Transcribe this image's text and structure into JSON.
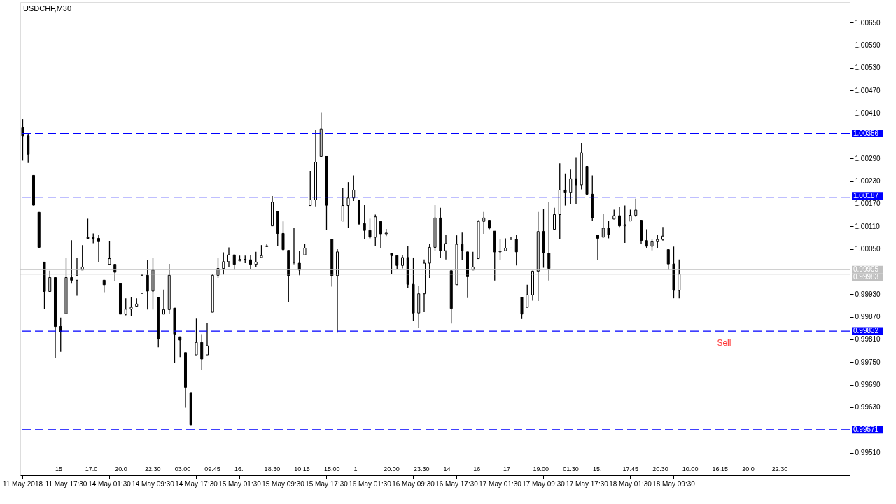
{
  "chart_data": {
    "type": "candlestick",
    "title": "USDCHF,M30",
    "color": "#000000",
    "grid": false,
    "categories": [
      "11 May 2018",
      null,
      null,
      null,
      null,
      null,
      null,
      null,
      "11 May 17:30",
      null,
      null,
      null,
      null,
      null,
      null,
      null,
      "14 May 01:30",
      null,
      null,
      null,
      null,
      null,
      null,
      null,
      "14 May 09:30",
      null,
      null,
      null,
      null,
      null,
      null,
      null,
      "14 May 17:30",
      null,
      null,
      null,
      null,
      null,
      null,
      null,
      "15 May 01:30",
      null,
      null,
      null,
      null,
      null,
      null,
      null,
      "15 May 09:30",
      null,
      null,
      null,
      null,
      null,
      null,
      null,
      "15 May 17:30",
      null,
      null,
      null,
      null,
      null,
      null,
      null,
      "16 May 01:30",
      null,
      null,
      null,
      null,
      null,
      null,
      null,
      "16 May 09:30",
      null,
      null,
      null,
      null,
      null,
      null,
      null,
      "16 May 17:30",
      null,
      null,
      null,
      null,
      null,
      null,
      null,
      "17 May 01:30",
      null,
      null,
      null,
      null,
      null,
      null,
      null,
      "17 May 09:30",
      null,
      null,
      null,
      null,
      null,
      null,
      null,
      "17 May 17:30",
      null,
      null,
      null,
      null,
      null,
      null,
      null,
      "18 May 01:30",
      null,
      null,
      null,
      null,
      null,
      null,
      null,
      "18 May 09:30",
      null,
      null,
      null,
      null,
      null,
      null,
      null,
      null,
      null,
      null,
      null,
      null,
      null,
      null,
      null,
      null,
      null,
      null,
      null,
      null,
      null,
      null,
      null,
      null,
      null,
      null,
      null,
      null,
      null,
      null,
      null,
      null
    ],
    "ohlc": [
      [
        1.00371,
        1.00394,
        1.00284,
        1.0035
      ],
      [
        1.0035,
        1.00356,
        1.00278,
        1.00301
      ],
      [
        1.00245,
        1.00245,
        1.00165,
        1.00166
      ],
      [
        1.00147,
        1.00147,
        1.00051,
        1.00054
      ],
      [
        1.00015,
        1.00015,
        0.9989,
        0.99937
      ],
      [
        0.99937,
        0.99992,
        0.99937,
        0.99974
      ],
      [
        0.99974,
        0.99974,
        0.9976,
        0.99844
      ],
      [
        0.99844,
        0.99868,
        0.99777,
        0.9983
      ],
      [
        0.99878,
        1.00026,
        0.99878,
        0.99974
      ],
      [
        0.99974,
        1.00073,
        0.99958,
        0.99967
      ],
      [
        0.99967,
        1.00026,
        0.99926,
        0.9998
      ],
      [
        0.99994,
        1.0006,
        0.99994,
        1.00002
      ],
      [
        1.00078,
        1.0013,
        1.00078,
        1.0008
      ],
      [
        1.0008,
        1.00091,
        1.00065,
        1.00078
      ],
      [
        1.00078,
        1.00088,
        1.00015,
        1.00069
      ],
      [
        0.99967,
        0.99967,
        0.99935,
        0.99955
      ],
      [
        1.00009,
        1.0007,
        1.00009,
        1.00024
      ],
      [
        1.00009,
        1.00009,
        0.99964,
        0.99988
      ],
      [
        0.99958,
        0.99958,
        0.99877,
        0.99877
      ],
      [
        0.99877,
        0.99919,
        0.99874,
        0.9989
      ],
      [
        0.9989,
        0.99922,
        0.99872,
        0.99895
      ],
      [
        0.99898,
        0.99919,
        0.99898,
        0.99904
      ],
      [
        0.99932,
        0.99982,
        0.99932,
        0.9998
      ],
      [
        0.9998,
        1.00021,
        0.99889,
        0.99938
      ],
      [
        0.99938,
        1.00027,
        0.99889,
        0.99994
      ],
      [
        0.99922,
        0.99922,
        0.99789,
        0.99811
      ],
      [
        0.99877,
        0.99942,
        0.99877,
        0.99889
      ],
      [
        0.99889,
        1.0001,
        0.99877,
        0.9998
      ],
      [
        0.99893,
        0.99893,
        0.99747,
        0.99824
      ],
      [
        0.99817,
        0.99817,
        0.99763,
        0.99808
      ],
      [
        0.99775,
        0.99775,
        0.99629,
        0.99683
      ],
      [
        0.99669,
        0.99669,
        0.99583,
        0.99584
      ],
      [
        0.99769,
        0.99865,
        0.99769,
        0.99802
      ],
      [
        0.99802,
        0.99824,
        0.99729,
        0.99758
      ],
      [
        0.99769,
        0.99854,
        0.99769,
        0.99793
      ],
      [
        0.99882,
        0.99982,
        0.99882,
        0.9998
      ],
      [
        0.9998,
        1.00025,
        0.99973,
        0.99998
      ],
      [
        0.99998,
        1.00041,
        0.99982,
        1.00016
      ],
      [
        1.00016,
        1.00054,
        1.00002,
        1.00034
      ],
      [
        1.00034,
        1.00034,
        0.99994,
        1.00009
      ],
      [
        1.00018,
        1.00032,
        1.00018,
        1.00022
      ],
      [
        1.00022,
        1.00032,
        1.00012,
        1.00021
      ],
      [
        1.00021,
        1.00034,
        0.99997,
        1.00009
      ],
      [
        1.00009,
        1.00042,
        1.00002,
        1.00015
      ],
      [
        1.00027,
        1.0006,
        1.00027,
        1.00032
      ],
      [
        1.00056,
        1.00062,
        1.00056,
        1.00058
      ],
      [
        1.00111,
        1.0019,
        1.00111,
        1.00174
      ],
      [
        1.0015,
        1.0015,
        1.00057,
        1.00091
      ],
      [
        1.00091,
        1.00123,
        1.00045,
        1.00048
      ],
      [
        1.00046,
        1.00046,
        0.9991,
        0.99979
      ],
      [
        1.00008,
        1.00106,
        1.00008,
        1.00012
      ],
      [
        1.00012,
        1.00045,
        0.9998,
        0.99994
      ],
      [
        1.00034,
        1.00063,
        1.00034,
        1.00052
      ],
      [
        1.00165,
        1.00257,
        1.00165,
        1.0018
      ],
      [
        1.0018,
        1.00366,
        1.00163,
        1.0028
      ],
      [
        1.00295,
        1.00412,
        1.00295,
        1.00368
      ],
      [
        1.00295,
        1.00295,
        1.001,
        1.00166
      ],
      [
        1.00075,
        1.00075,
        0.9995,
        0.99979
      ],
      [
        0.99979,
        1.00049,
        0.99828,
        1.00042
      ],
      [
        1.00124,
        1.00211,
        1.00124,
        1.00165
      ],
      [
        1.00165,
        1.00227,
        1.00105,
        1.00185
      ],
      [
        1.00185,
        1.00245,
        1.00177,
        1.00206
      ],
      [
        1.0018,
        1.0018,
        1.00114,
        1.00117
      ],
      [
        1.00117,
        1.00166,
        1.00076,
        1.00099
      ],
      [
        1.00099,
        1.0013,
        1.00076,
        1.00081
      ],
      [
        1.00081,
        1.00141,
        1.00057,
        1.00135
      ],
      [
        1.00123,
        1.00123,
        1.00052,
        1.0009
      ],
      [
        1.0009,
        1.00103,
        1.00084,
        1.00092
      ],
      [
        1.00038,
        1.00038,
        0.99984,
        1.00032
      ],
      [
        1.00032,
        1.00033,
        0.99997,
        1.00006
      ],
      [
        1.00006,
        1.00034,
        0.99998,
        1.00027
      ],
      [
        1.00027,
        1.00057,
        0.99946,
        0.99956
      ],
      [
        0.99956,
        1.00027,
        0.9986,
        0.9988
      ],
      [
        0.9988,
        0.99952,
        0.9984,
        0.99931
      ],
      [
        0.99931,
        1.00022,
        0.99882,
        1.00012
      ],
      [
        1.00012,
        1.00063,
        0.99973,
        1.00054
      ],
      [
        1.00054,
        1.00166,
        1.00045,
        1.00132
      ],
      [
        1.00132,
        1.00159,
        1.00027,
        1.00045
      ],
      [
        1.00045,
        1.00087,
        1.00022,
        1.00064
      ],
      [
        0.99992,
        0.99992,
        0.99852,
        0.99892
      ],
      [
        0.99955,
        1.00086,
        0.99955,
        1.00062
      ],
      [
        1.00062,
        1.00093,
        1.00021,
        1.00045
      ],
      [
        1.00042,
        1.00042,
        0.9992,
        0.99976
      ],
      [
        0.99994,
        1.00042,
        0.99994,
        1.00002
      ],
      [
        1.00024,
        1.00126,
        1.00024,
        1.00123
      ],
      [
        1.00123,
        1.00148,
        1.0009,
        1.00132
      ],
      [
        1.00126,
        1.00126,
        1.00102,
        1.00105
      ],
      [
        1.00097,
        1.00097,
        0.99966,
        1.00042
      ],
      [
        1.00042,
        1.00076,
        1.00021,
        1.00044
      ],
      [
        1.00045,
        1.00078,
        1.00045,
        1.00052
      ],
      [
        1.00052,
        1.00081,
        1.00051,
        1.00075
      ],
      [
        1.00075,
        1.00087,
        1.00006,
        1.00042
      ],
      [
        0.99922,
        0.99922,
        0.99864,
        0.99877
      ],
      [
        0.99895,
        0.99955,
        0.99895,
        0.99928
      ],
      [
        0.99928,
        0.99992,
        0.99913,
        0.99991
      ],
      [
        0.99991,
        1.00148,
        0.99912,
        1.00096
      ],
      [
        1.00096,
        1.00156,
        1.0,
        1.00039
      ],
      [
        1.00039,
        1.00175,
        0.99966,
        0.99998
      ],
      [
        1.00102,
        1.00159,
        1.00102,
        1.00141
      ],
      [
        1.00141,
        1.00277,
        1.00075,
        1.00206
      ],
      [
        1.00206,
        1.0025,
        1.00165,
        1.002
      ],
      [
        1.002,
        1.0026,
        1.00168,
        1.00236
      ],
      [
        1.00236,
        1.00293,
        1.00168,
        1.0022
      ],
      [
        1.0022,
        1.00331,
        1.00208,
        1.00305
      ],
      [
        1.00269,
        1.00269,
        1.00192,
        1.00195
      ],
      [
        1.00195,
        1.00245,
        1.00124,
        1.00132
      ],
      [
        1.00087,
        1.00087,
        1.00021,
        1.00078
      ],
      [
        1.00081,
        1.00144,
        1.00081,
        1.00105
      ],
      [
        1.00105,
        1.00124,
        1.00078,
        1.00088
      ],
      [
        1.00129,
        1.00154,
        1.00129,
        1.00138
      ],
      [
        1.00138,
        1.00162,
        1.00108,
        1.00111
      ],
      [
        1.00111,
        1.00165,
        1.00066,
        1.00114
      ],
      [
        1.00124,
        1.00154,
        1.00124,
        1.00139
      ],
      [
        1.00139,
        1.00183,
        1.00135,
        1.00153
      ],
      [
        1.00126,
        1.00126,
        1.00063,
        1.00072
      ],
      [
        1.00072,
        1.00102,
        1.00051,
        1.00057
      ],
      [
        1.00057,
        1.00075,
        1.00046,
        1.00069
      ],
      [
        1.00069,
        1.00088,
        1.00051,
        1.00075
      ],
      [
        1.00075,
        1.00108,
        1.00072,
        1.00084
      ],
      [
        1.00048,
        1.00048,
        0.99994,
        1.0001
      ],
      [
        1.0001,
        1.00056,
        0.99919,
        0.9994
      ],
      [
        0.9994,
        1.00022,
        0.99919,
        0.99983
      ],
      null,
      null,
      null,
      null,
      null,
      null,
      null,
      null,
      null,
      null,
      null,
      null,
      null,
      null,
      null,
      null,
      null,
      null,
      null,
      null,
      null,
      null,
      null,
      null,
      null,
      null,
      null,
      null,
      null,
      null,
      null
    ],
    "ylim": [
      0.9945,
      1.00704
    ],
    "yticks": [
      {
        "value": 1.0065,
        "label": "1.00650"
      },
      {
        "value": 1.0059,
        "label": "1.00590"
      },
      {
        "value": 1.0053,
        "label": "1.00530"
      },
      {
        "value": 1.0047,
        "label": "1.00470"
      },
      {
        "value": 1.0041,
        "label": "1.00410"
      },
      {
        "value": 1.0029,
        "label": "1.00290"
      },
      {
        "value": 1.0023,
        "label": "1.00230"
      },
      {
        "value": 1.0017,
        "label": "1.00170"
      },
      {
        "value": 1.0011,
        "label": "1.00110"
      },
      {
        "value": 1.0005,
        "label": "1.00050"
      },
      {
        "value": 0.9993,
        "label": "0.99930"
      },
      {
        "value": 0.9987,
        "label": "0.99870"
      },
      {
        "value": 0.9981,
        "label": "0.99810"
      },
      {
        "value": 0.9975,
        "label": "0.99750"
      },
      {
        "value": 0.9969,
        "label": "0.99690"
      },
      {
        "value": 0.9963,
        "label": "0.99630"
      },
      {
        "value": 0.9951,
        "label": "0.99510"
      }
    ],
    "ref_lines": [
      {
        "axis": "y",
        "value": 1.00356,
        "label": "1.00356",
        "color": "#0000ff",
        "line_style": "dashed"
      },
      {
        "axis": "y",
        "value": 1.00187,
        "label": "1.00187",
        "color": "#0000ff",
        "line_style": "dashed"
      },
      {
        "axis": "y",
        "value": 0.99832,
        "label": "0.99832",
        "color": "#0000ff",
        "line_style": "dashed"
      },
      {
        "axis": "y",
        "value": 0.99571,
        "label": "0.99571",
        "color": "#0000ff",
        "line_style": "dashed"
      },
      {
        "axis": "y",
        "value": 0.99995,
        "label": "0.99995",
        "color": "#c0c0c0",
        "line_style": "solid"
      },
      {
        "axis": "y",
        "value": 0.99983,
        "label": "0.99983",
        "color": "#c0c0c0",
        "line_style": "solid"
      }
    ],
    "annotations": [
      "Sell",
      "15",
      "17:0",
      "20:0",
      "22:30",
      "03:00",
      "09:45",
      "16:",
      "18:30",
      "10:15",
      "15:00",
      "1",
      "20:00",
      "23:30",
      "14",
      "16",
      "17",
      "19:00",
      "01:30",
      "15:",
      "17:45",
      "20:30",
      "10:00",
      "16:15",
      "20:0",
      "22:30"
    ]
  }
}
